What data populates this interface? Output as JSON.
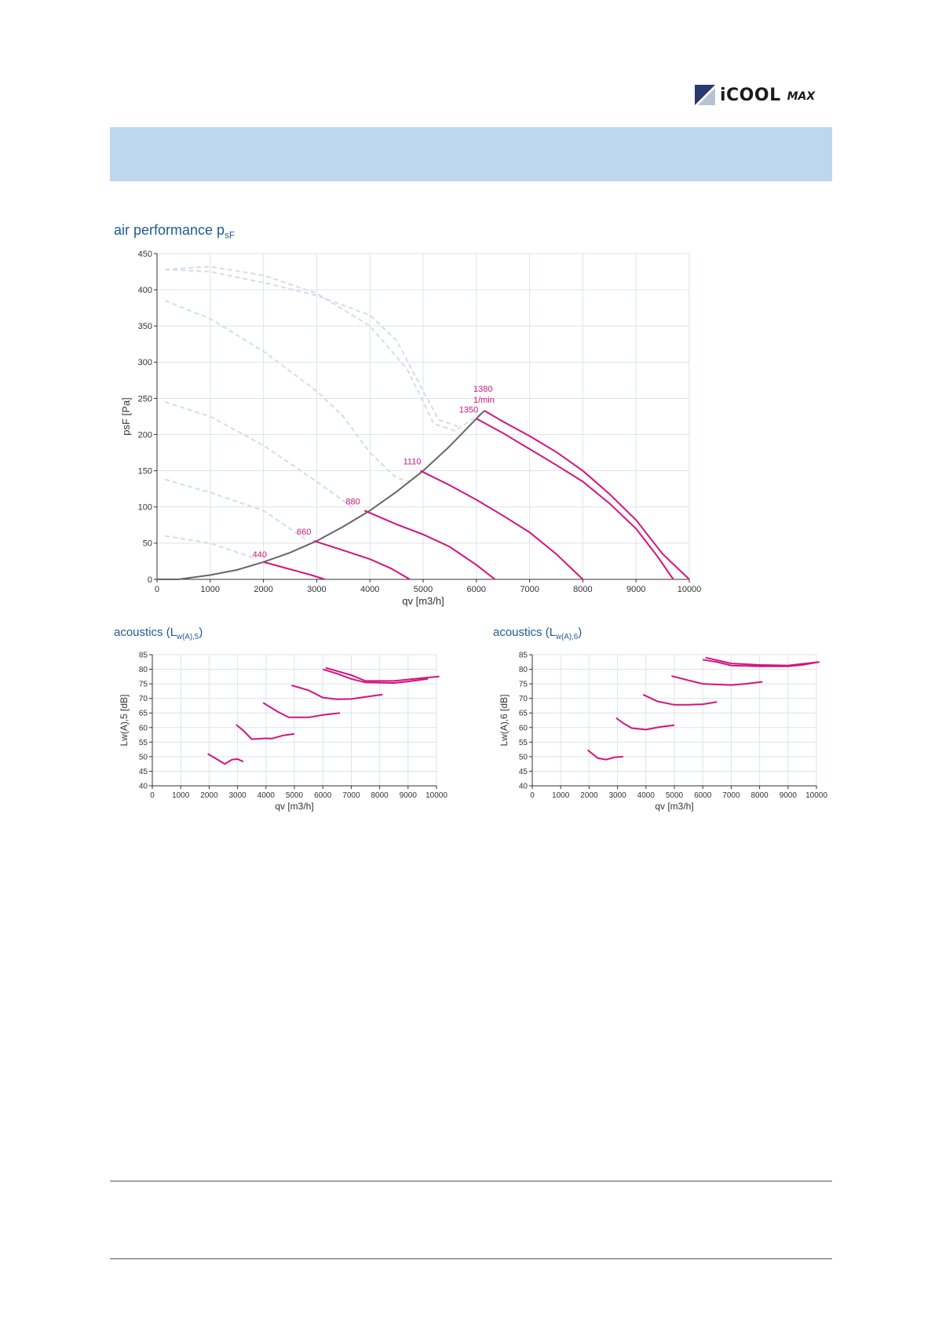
{
  "logo": {
    "brand": "iCOOL",
    "sub": "MAX"
  },
  "chart_data": [
    {
      "type": "line",
      "title": "air performance p",
      "title_sub": "sF",
      "xlabel": "qv [m3/h]",
      "ylabel": "psF [Pa]",
      "xlim": [
        0,
        10000
      ],
      "ylim": [
        0,
        450
      ],
      "xticks": [
        0,
        1000,
        2000,
        3000,
        4000,
        5000,
        6000,
        7000,
        8000,
        9000,
        10000
      ],
      "yticks": [
        0,
        50,
        100,
        150,
        200,
        250,
        300,
        350,
        400,
        450
      ],
      "grid": true,
      "colors": {
        "speed": "#d4137e",
        "system": "#666666",
        "reference": "#d3dde8",
        "grid": "#dde3ea"
      },
      "system_curve": {
        "name": "system",
        "points": [
          [
            0,
            0
          ],
          [
            400,
            0
          ],
          [
            1000,
            6
          ],
          [
            1500,
            13
          ],
          [
            2000,
            24
          ],
          [
            2500,
            37
          ],
          [
            3000,
            53
          ],
          [
            3500,
            73
          ],
          [
            4000,
            95
          ],
          [
            4500,
            121
          ],
          [
            5000,
            150
          ],
          [
            5500,
            184
          ],
          [
            6000,
            222
          ],
          [
            6150,
            233
          ]
        ]
      },
      "series": [
        {
          "name": "440",
          "label": "440",
          "points": [
            [
              2000,
              24
            ],
            [
              2500,
              14
            ],
            [
              2900,
              6
            ],
            [
              3150,
              0
            ]
          ]
        },
        {
          "name": "660",
          "label": "660",
          "points": [
            [
              2950,
              53
            ],
            [
              3500,
              40
            ],
            [
              4000,
              28
            ],
            [
              4400,
              15
            ],
            [
              4750,
              0
            ]
          ]
        },
        {
          "name": "880",
          "label": "880",
          "points": [
            [
              3900,
              95
            ],
            [
              4500,
              76
            ],
            [
              5000,
              62
            ],
            [
              5500,
              45
            ],
            [
              6000,
              20
            ],
            [
              6350,
              0
            ]
          ]
        },
        {
          "name": "1110",
          "label": "1110",
          "points": [
            [
              4950,
              150
            ],
            [
              5500,
              130
            ],
            [
              6000,
              110
            ],
            [
              6500,
              88
            ],
            [
              7000,
              65
            ],
            [
              7500,
              35
            ],
            [
              8000,
              0
            ]
          ]
        },
        {
          "name": "1350",
          "label": "1350",
          "points": [
            [
              6000,
              222
            ],
            [
              6500,
              202
            ],
            [
              7000,
              180
            ],
            [
              7500,
              158
            ],
            [
              8000,
              135
            ],
            [
              8500,
              105
            ],
            [
              9000,
              70
            ],
            [
              9400,
              32
            ],
            [
              9700,
              0
            ]
          ]
        },
        {
          "name": "1380",
          "label": "1380",
          "points": [
            [
              6150,
              233
            ],
            [
              6500,
              218
            ],
            [
              7000,
              198
            ],
            [
              7500,
              176
            ],
            [
              8000,
              150
            ],
            [
              8500,
              118
            ],
            [
              9000,
              82
            ],
            [
              9500,
              35
            ],
            [
              10000,
              0
            ]
          ]
        }
      ],
      "unit_label": "1/min",
      "reference_curves": [
        [
          [
            150,
            428
          ],
          [
            1000,
            432
          ],
          [
            2000,
            420
          ],
          [
            3000,
            395
          ],
          [
            4000,
            350
          ],
          [
            4700,
            290
          ],
          [
            5200,
            215
          ],
          [
            5600,
            205
          ],
          [
            6100,
            230
          ]
        ],
        [
          [
            150,
            428
          ],
          [
            1000,
            425
          ],
          [
            2000,
            410
          ],
          [
            3000,
            392
          ],
          [
            4000,
            365
          ],
          [
            4500,
            330
          ],
          [
            5000,
            260
          ],
          [
            5300,
            220
          ],
          [
            5700,
            210
          ]
        ],
        [
          [
            150,
            385
          ],
          [
            1000,
            360
          ],
          [
            2000,
            315
          ],
          [
            3000,
            260
          ],
          [
            3500,
            225
          ],
          [
            4000,
            175
          ],
          [
            4500,
            140
          ],
          [
            4800,
            135
          ]
        ],
        [
          [
            150,
            245
          ],
          [
            1000,
            225
          ],
          [
            2000,
            185
          ],
          [
            3000,
            135
          ],
          [
            3700,
            98
          ]
        ],
        [
          [
            150,
            138
          ],
          [
            1000,
            120
          ],
          [
            2000,
            95
          ],
          [
            2800,
            55
          ]
        ],
        [
          [
            150,
            60
          ],
          [
            1000,
            50
          ],
          [
            1800,
            30
          ]
        ]
      ]
    },
    {
      "type": "line",
      "title": "acoustics (L",
      "title_sub": "w(A),5",
      "title_end": ")",
      "xlabel": "qv [m3/h]",
      "ylabel": "Lw(A),5 [dB]",
      "xlim": [
        0,
        10000
      ],
      "ylim": [
        40,
        85
      ],
      "xticks": [
        0,
        1000,
        2000,
        3000,
        4000,
        5000,
        6000,
        7000,
        8000,
        9000,
        10000
      ],
      "yticks": [
        40,
        45,
        50,
        55,
        60,
        65,
        70,
        75,
        80,
        85
      ],
      "grid": true,
      "series": [
        {
          "name": "440",
          "points": [
            [
              1950,
              51
            ],
            [
              2300,
              49
            ],
            [
              2550,
              47.5
            ],
            [
              2800,
              49
            ],
            [
              3000,
              49.2
            ],
            [
              3200,
              48.3
            ]
          ]
        },
        {
          "name": "660",
          "points": [
            [
              2950,
              61
            ],
            [
              3200,
              59
            ],
            [
              3500,
              56
            ],
            [
              4000,
              56.3
            ],
            [
              4200,
              56.2
            ],
            [
              4600,
              57.3
            ],
            [
              5000,
              57.8
            ]
          ]
        },
        {
          "name": "880",
          "points": [
            [
              3900,
              68.5
            ],
            [
              4400,
              65.5
            ],
            [
              4800,
              63.5
            ],
            [
              5500,
              63.5
            ],
            [
              6000,
              64.3
            ],
            [
              6600,
              65
            ]
          ]
        },
        {
          "name": "1110",
          "points": [
            [
              4900,
              74.5
            ],
            [
              5500,
              72.8
            ],
            [
              6000,
              70.3
            ],
            [
              6500,
              69.7
            ],
            [
              7000,
              69.8
            ],
            [
              7500,
              70.5
            ],
            [
              8100,
              71.3
            ]
          ]
        },
        {
          "name": "1350",
          "points": [
            [
              6000,
              80
            ],
            [
              6500,
              78.5
            ],
            [
              7000,
              76.7
            ],
            [
              7500,
              75.5
            ],
            [
              8500,
              75.3
            ],
            [
              9000,
              75.8
            ],
            [
              9700,
              76.7
            ]
          ]
        },
        {
          "name": "1380",
          "points": [
            [
              6100,
              80.5
            ],
            [
              7000,
              78
            ],
            [
              7500,
              76
            ],
            [
              8500,
              76
            ],
            [
              9500,
              77
            ],
            [
              10100,
              77.5
            ]
          ]
        }
      ]
    },
    {
      "type": "line",
      "title": "acoustics (L",
      "title_sub": "w(A),6",
      "title_end": ")",
      "xlabel": "qv [m3/h]",
      "ylabel": "Lw(A),6 [dB]",
      "xlim": [
        0,
        10000
      ],
      "ylim": [
        40,
        85
      ],
      "xticks": [
        0,
        1000,
        2000,
        3000,
        4000,
        5000,
        6000,
        7000,
        8000,
        9000,
        10000
      ],
      "yticks": [
        40,
        45,
        50,
        55,
        60,
        65,
        70,
        75,
        80,
        85
      ],
      "grid": true,
      "series": [
        {
          "name": "440",
          "points": [
            [
              1950,
              52.3
            ],
            [
              2300,
              49.5
            ],
            [
              2600,
              49
            ],
            [
              2900,
              49.8
            ],
            [
              3200,
              50
            ]
          ]
        },
        {
          "name": "660",
          "points": [
            [
              2950,
              63.3
            ],
            [
              3200,
              61.5
            ],
            [
              3500,
              59.8
            ],
            [
              4000,
              59.3
            ],
            [
              4500,
              60.2
            ],
            [
              5000,
              60.8
            ]
          ]
        },
        {
          "name": "880",
          "points": [
            [
              3900,
              71.3
            ],
            [
              4400,
              69
            ],
            [
              5000,
              67.8
            ],
            [
              5500,
              67.8
            ],
            [
              6000,
              68
            ],
            [
              6500,
              68.8
            ]
          ]
        },
        {
          "name": "1110",
          "points": [
            [
              4900,
              77.7
            ],
            [
              5500,
              76.2
            ],
            [
              6000,
              75
            ],
            [
              7000,
              74.6
            ],
            [
              7500,
              75
            ],
            [
              8100,
              75.7
            ]
          ]
        },
        {
          "name": "1350",
          "points": [
            [
              6000,
              83.3
            ],
            [
              6500,
              82.5
            ],
            [
              7000,
              81.3
            ],
            [
              8000,
              81
            ],
            [
              9000,
              81
            ],
            [
              9500,
              81.5
            ],
            [
              10100,
              82.5
            ]
          ]
        },
        {
          "name": "1380",
          "points": [
            [
              6100,
              84
            ],
            [
              7000,
              82
            ],
            [
              8000,
              81.5
            ],
            [
              9000,
              81.3
            ],
            [
              10100,
              82.5
            ]
          ]
        }
      ]
    }
  ]
}
